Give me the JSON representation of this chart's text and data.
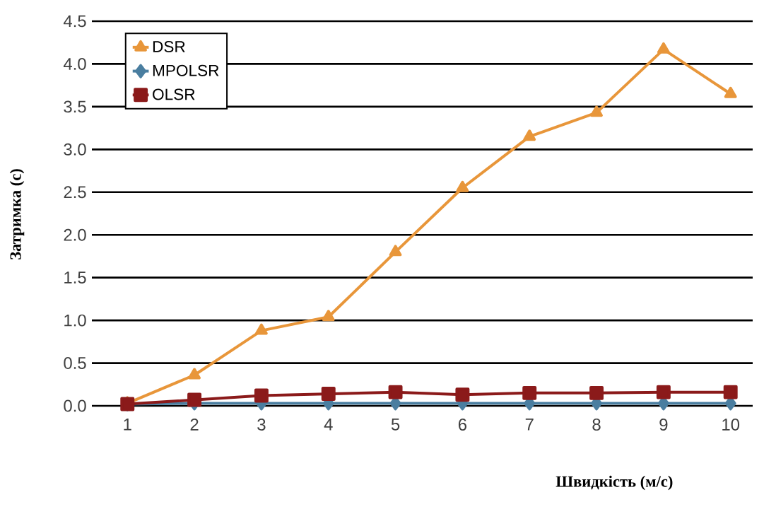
{
  "chart_data": {
    "type": "line",
    "xlabel": "Швидкість (м/с)",
    "ylabel": "Затримка (с)",
    "x": [
      1,
      2,
      3,
      4,
      5,
      6,
      7,
      8,
      9,
      10
    ],
    "xlim": [
      0.47,
      10.33
    ],
    "xticks": [
      1,
      2,
      3,
      4,
      5,
      6,
      7,
      8,
      9,
      10
    ],
    "ylim": [
      0,
      4.5
    ],
    "yticks": [
      {
        "value": 0,
        "label": "0.0"
      },
      0.5,
      {
        "value": 1,
        "label": "1.0"
      },
      1.5,
      {
        "value": 2,
        "label": "2.0"
      },
      2.5,
      {
        "value": 3,
        "label": "3.0"
      },
      3.5,
      {
        "value": 4,
        "label": "4.0"
      },
      4.5
    ],
    "grid": "y",
    "legend": "top left",
    "series": [
      {
        "name": "DSR",
        "color": "#e8963a",
        "marker": "triangle",
        "values": [
          0.03,
          0.36,
          0.88,
          1.04,
          1.8,
          2.55,
          3.15,
          3.43,
          4.17,
          3.65
        ]
      },
      {
        "name": "MPOLSR",
        "color": "#4a7ea0",
        "marker": "diamond",
        "values": [
          0.02,
          0.03,
          0.03,
          0.03,
          0.03,
          0.03,
          0.03,
          0.03,
          0.03,
          0.03
        ]
      },
      {
        "name": "OLSR",
        "color": "#8b1a1a",
        "marker": "square",
        "values": [
          0.02,
          0.07,
          0.12,
          0.14,
          0.16,
          0.13,
          0.15,
          0.15,
          0.16,
          0.16
        ]
      }
    ]
  }
}
